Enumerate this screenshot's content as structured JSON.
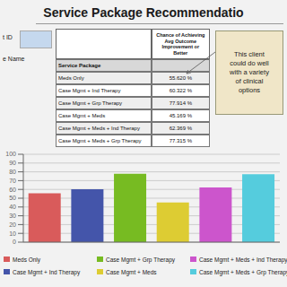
{
  "chart_data": {
    "type": "bar",
    "title": "Service Package Recommendatio",
    "annotations": [
      "t ID",
      "e Name",
      "This client\ncould do well\nwith a variety\nof clinical\noptions"
    ],
    "table": {
      "columns": [
        "Service Package",
        "Chance of Achieving\nAvg Outcome\nImprovement or\nBetter"
      ],
      "rows": [
        [
          "Meds Only",
          "55.620 %"
        ],
        [
          "Case Mgmt + Ind Therapy",
          "60.322 %"
        ],
        [
          "Case Mgmt + Grp Therapy",
          "77.914 %"
        ],
        [
          "Case Mgmt + Meds",
          "45.169 %"
        ],
        [
          "Case Mgmt + Meds + Ind Therapy",
          "62.369 %"
        ],
        [
          "Case Mgmt + Meds + Grp Therapy",
          "77.315 %"
        ]
      ]
    },
    "categories": [
      "Meds Only",
      "Case Mgmt + Ind Therapy",
      "Case Mgmt + Grp Therapy",
      "Case Mgmt + Meds",
      "Case Mgmt + Meds + Ind Therapy",
      "Case Mgmt + Meds + Grp Therapy"
    ],
    "values": [
      55.62,
      60.322,
      77.914,
      45.169,
      62.369,
      77.315
    ],
    "colors": [
      "#d95b5b",
      "#4455aa",
      "#77bb22",
      "#ddcc33",
      "#cc55cc",
      "#55ccdd"
    ],
    "ylim": [
      0,
      100
    ],
    "yticks": [
      0,
      10,
      20,
      30,
      40,
      50,
      60,
      70,
      80,
      90,
      100
    ],
    "grid": true,
    "legend": "bottom",
    "tick_labels": "y"
  }
}
